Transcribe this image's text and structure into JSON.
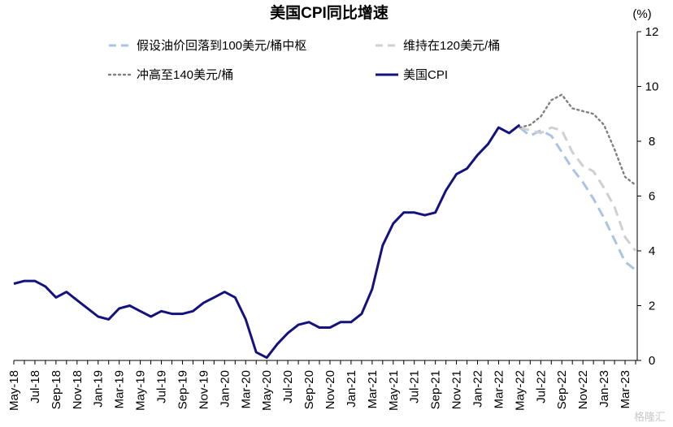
{
  "chart_data": {
    "type": "line",
    "title": "美国CPI同比增速",
    "unit_label": "(%)",
    "ylim": [
      0,
      12
    ],
    "yticks": [
      "0",
      "2",
      "4",
      "6",
      "8",
      "10",
      "12"
    ],
    "axis_side": "right",
    "legend_position": "top",
    "x_labels": [
      "May-18",
      "Jul-18",
      "Sep-18",
      "Nov-18",
      "Jan-19",
      "Mar-19",
      "May-19",
      "Jul-19",
      "Sep-19",
      "Nov-19",
      "Jan-20",
      "Mar-20",
      "May-20",
      "Jul-20",
      "Sep-20",
      "Nov-20",
      "Jan-21",
      "Mar-21",
      "May-21",
      "Jul-21",
      "Sep-21",
      "Nov-21",
      "Jan-22",
      "Mar-22",
      "May-22",
      "Jul-22",
      "Sep-22",
      "Nov-22",
      "Jan-23",
      "Mar-23"
    ],
    "months": [
      "2018-05",
      "2018-06",
      "2018-07",
      "2018-08",
      "2018-09",
      "2018-10",
      "2018-11",
      "2018-12",
      "2019-01",
      "2019-02",
      "2019-03",
      "2019-04",
      "2019-05",
      "2019-06",
      "2019-07",
      "2019-08",
      "2019-09",
      "2019-10",
      "2019-11",
      "2019-12",
      "2020-01",
      "2020-02",
      "2020-03",
      "2020-04",
      "2020-05",
      "2020-06",
      "2020-07",
      "2020-08",
      "2020-09",
      "2020-10",
      "2020-11",
      "2020-12",
      "2021-01",
      "2021-02",
      "2021-03",
      "2021-04",
      "2021-05",
      "2021-06",
      "2021-07",
      "2021-08",
      "2021-09",
      "2021-10",
      "2021-11",
      "2021-12",
      "2022-01",
      "2022-02",
      "2022-03",
      "2022-04",
      "2022-05",
      "2022-06",
      "2022-07",
      "2022-08",
      "2022-09",
      "2022-10",
      "2022-11",
      "2022-12",
      "2023-01",
      "2023-02",
      "2023-03",
      "2023-04"
    ],
    "series": [
      {
        "name": "假设油价回落到100美元/桶中枢",
        "style": "dashed",
        "color": "#a9c4e4",
        "x": [
          "2022-05",
          "2022-06",
          "2022-07",
          "2022-08",
          "2022-09",
          "2022-10",
          "2022-11",
          "2022-12",
          "2023-01",
          "2023-02",
          "2023-03",
          "2023-04"
        ],
        "values": [
          8.5,
          8.2,
          8.4,
          8.2,
          7.6,
          7.0,
          6.5,
          5.9,
          5.2,
          4.4,
          3.6,
          3.3
        ]
      },
      {
        "name": "维持在120美元/桶",
        "style": "dashed",
        "color": "#d0d0d0",
        "x": [
          "2022-05",
          "2022-06",
          "2022-07",
          "2022-08",
          "2022-09",
          "2022-10",
          "2022-11",
          "2022-12",
          "2023-01",
          "2023-02",
          "2023-03",
          "2023-04"
        ],
        "values": [
          8.5,
          8.4,
          8.3,
          8.5,
          8.4,
          7.6,
          7.1,
          6.9,
          6.3,
          5.6,
          4.5,
          4.0
        ]
      },
      {
        "name": "冲高至140美元/桶",
        "style": "dotted",
        "color": "#808080",
        "x": [
          "2022-05",
          "2022-06",
          "2022-07",
          "2022-08",
          "2022-09",
          "2022-10",
          "2022-11",
          "2022-12",
          "2023-01",
          "2023-02",
          "2023-03",
          "2023-04"
        ],
        "values": [
          8.5,
          8.6,
          8.9,
          9.5,
          9.7,
          9.2,
          9.1,
          9.0,
          8.6,
          7.7,
          6.7,
          6.4
        ]
      },
      {
        "name": "美国CPI",
        "style": "solid",
        "color": "#14137e",
        "x": [
          "2018-05",
          "2018-06",
          "2018-07",
          "2018-08",
          "2018-09",
          "2018-10",
          "2018-11",
          "2018-12",
          "2019-01",
          "2019-02",
          "2019-03",
          "2019-04",
          "2019-05",
          "2019-06",
          "2019-07",
          "2019-08",
          "2019-09",
          "2019-10",
          "2019-11",
          "2019-12",
          "2020-01",
          "2020-02",
          "2020-03",
          "2020-04",
          "2020-05",
          "2020-06",
          "2020-07",
          "2020-08",
          "2020-09",
          "2020-10",
          "2020-11",
          "2020-12",
          "2021-01",
          "2021-02",
          "2021-03",
          "2021-04",
          "2021-05",
          "2021-06",
          "2021-07",
          "2021-08",
          "2021-09",
          "2021-10",
          "2021-11",
          "2021-12",
          "2022-01",
          "2022-02",
          "2022-03",
          "2022-04",
          "2022-05"
        ],
        "values": [
          2.8,
          2.9,
          2.9,
          2.7,
          2.3,
          2.5,
          2.2,
          1.9,
          1.6,
          1.5,
          1.9,
          2.0,
          1.8,
          1.6,
          1.8,
          1.7,
          1.7,
          1.8,
          2.1,
          2.3,
          2.5,
          2.3,
          1.5,
          0.3,
          0.1,
          0.6,
          1.0,
          1.3,
          1.4,
          1.2,
          1.2,
          1.4,
          1.4,
          1.7,
          2.6,
          4.2,
          5.0,
          5.4,
          5.4,
          5.3,
          5.4,
          6.2,
          6.8,
          7.0,
          7.5,
          7.9,
          8.5,
          8.3,
          8.6
        ]
      }
    ]
  },
  "watermark": "格隆汇"
}
